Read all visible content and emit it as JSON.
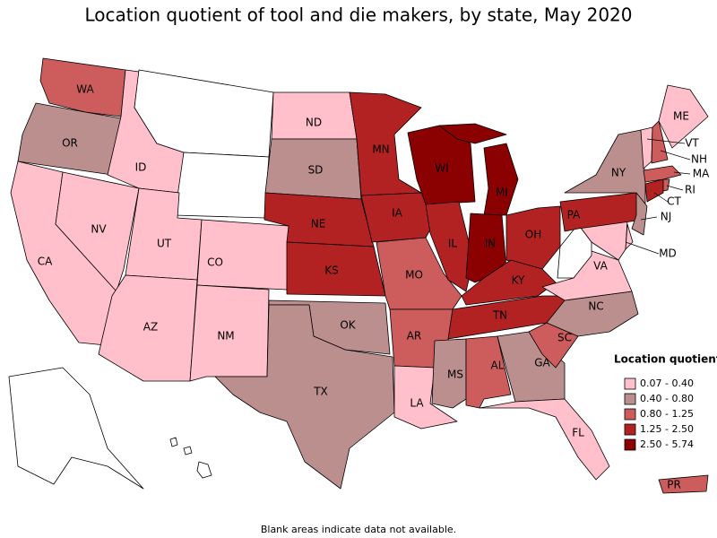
{
  "title": "Location quotient of tool and die makers, by state, May 2020",
  "legend": {
    "title": "Location quotient",
    "items": [
      {
        "label": "0.07 - 0.40",
        "color": "#ffc0cb"
      },
      {
        "label": "0.40 - 0.80",
        "color": "#bc8f8f"
      },
      {
        "label": "0.80 - 1.25",
        "color": "#cd5c5c"
      },
      {
        "label": "1.25 - 2.50",
        "color": "#b22222"
      },
      {
        "label": "2.50 - 5.74",
        "color": "#8b0000"
      }
    ]
  },
  "states": [
    {
      "label": "WA",
      "color": "#cd5c5c"
    },
    {
      "label": "OR",
      "color": "#bc8f8f"
    },
    {
      "label": "CA",
      "color": "#ffc0cb"
    },
    {
      "label": "NV",
      "color": "#ffc0cb"
    },
    {
      "label": "ID",
      "color": "#ffc0cb"
    },
    {
      "color": "#ffffff"
    },
    {
      "color": "#ffffff"
    },
    {
      "label": "UT",
      "color": "#ffc0cb"
    },
    {
      "label": "AZ",
      "color": "#ffc0cb"
    },
    {
      "label": "CO",
      "color": "#ffc0cb"
    },
    {
      "label": "NM",
      "color": "#ffc0cb"
    },
    {
      "label": "ND",
      "color": "#ffc0cb"
    },
    {
      "label": "SD",
      "color": "#bc8f8f"
    },
    {
      "label": "NE",
      "color": "#b22222"
    },
    {
      "label": "KS",
      "color": "#b22222"
    },
    {
      "label": "OK",
      "color": "#bc8f8f"
    },
    {
      "label": "TX",
      "color": "#bc8f8f"
    },
    {
      "label": "MN",
      "color": "#b22222"
    },
    {
      "label": "IA",
      "color": "#b22222"
    },
    {
      "label": "MO",
      "color": "#cd5c5c"
    },
    {
      "label": "AR",
      "color": "#cd5c5c"
    },
    {
      "label": "LA",
      "color": "#ffc0cb"
    },
    {
      "label": "WI",
      "color": "#8b0000"
    },
    {
      "label": "IL",
      "color": "#b22222"
    },
    {
      "label": "MI",
      "color": "#8b0000"
    },
    {
      "label": "IN",
      "color": "#8b0000"
    },
    {
      "label": "OH",
      "color": "#b22222"
    },
    {
      "label": "KY",
      "color": "#b22222"
    },
    {
      "label": "TN",
      "color": "#b22222"
    },
    {
      "label": "MS",
      "color": "#bc8f8f"
    },
    {
      "label": "AL",
      "color": "#cd5c5c"
    },
    {
      "label": "GA",
      "color": "#bc8f8f"
    },
    {
      "label": "FL",
      "color": "#ffc0cb"
    },
    {
      "label": "SC",
      "color": "#cd5c5c"
    },
    {
      "label": "NC",
      "color": "#bc8f8f"
    },
    {
      "label": "VA",
      "color": "#ffc0cb"
    },
    {
      "color": "#ffffff"
    },
    {
      "label": "MD",
      "color": "#ffc0cb"
    },
    {
      "color": "#ffc0cb"
    },
    {
      "label": "PA",
      "color": "#b22222"
    },
    {
      "label": "NY",
      "color": "#bc8f8f"
    },
    {
      "label": "NJ",
      "color": "#bc8f8f"
    },
    {
      "label": "CT",
      "color": "#b22222"
    },
    {
      "label": "RI",
      "color": "#cd5c5c"
    },
    {
      "label": "MA",
      "color": "#cd5c5c"
    },
    {
      "label": "VT",
      "color": "#ffc0cb"
    },
    {
      "label": "NH",
      "color": "#cd5c5c"
    },
    {
      "label": "ME",
      "color": "#ffc0cb"
    },
    {
      "color": "#ffffff"
    },
    {
      "color": "#ffffff"
    },
    {
      "label": "PR",
      "color": "#cd5c5c"
    }
  ],
  "footnote": "Blank areas indicate data not available."
}
